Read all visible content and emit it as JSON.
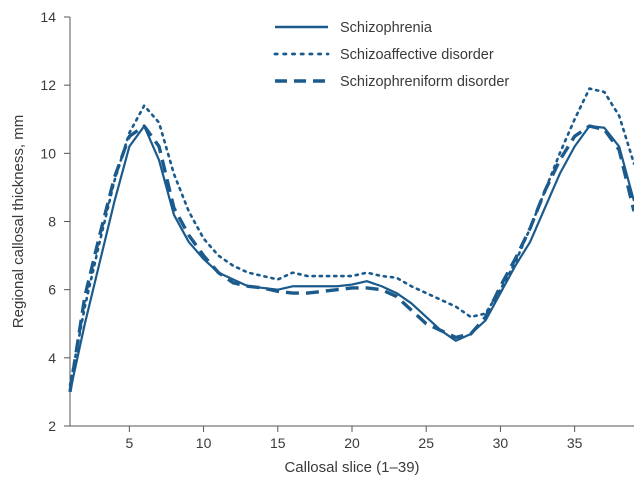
{
  "chart_data": {
    "type": "line",
    "title": "",
    "xlabel": "Callosal slice (1–39)",
    "ylabel": "Regional callosal thickness, mm",
    "xlim": [
      1,
      39
    ],
    "ylim": [
      2,
      14
    ],
    "xticks": [
      5,
      10,
      15,
      20,
      25,
      30,
      35
    ],
    "yticks": [
      2,
      4,
      6,
      8,
      10,
      12,
      14
    ],
    "grid": false,
    "legend_position": "top-center",
    "color": "#1a5a8c",
    "x": [
      1,
      2,
      3,
      4,
      5,
      6,
      7,
      8,
      9,
      10,
      11,
      12,
      13,
      14,
      15,
      16,
      17,
      18,
      19,
      20,
      21,
      22,
      23,
      24,
      25,
      26,
      27,
      28,
      29,
      30,
      31,
      32,
      33,
      34,
      35,
      36,
      37,
      38,
      39
    ],
    "series": [
      {
        "name": "Schizophrenia",
        "style": "solid",
        "values": [
          3.0,
          5.0,
          6.8,
          8.6,
          10.2,
          10.8,
          9.8,
          8.2,
          7.4,
          6.9,
          6.5,
          6.3,
          6.1,
          6.05,
          6.0,
          6.1,
          6.1,
          6.1,
          6.1,
          6.15,
          6.25,
          6.1,
          5.9,
          5.6,
          5.2,
          4.8,
          4.5,
          4.7,
          5.1,
          5.9,
          6.7,
          7.4,
          8.4,
          9.4,
          10.2,
          10.8,
          10.75,
          10.2,
          8.6
        ]
      },
      {
        "name": "Schizoaffective disorder",
        "style": "dotted",
        "values": [
          3.2,
          5.5,
          7.4,
          9.2,
          10.6,
          11.4,
          10.9,
          9.4,
          8.3,
          7.5,
          7.0,
          6.7,
          6.5,
          6.4,
          6.3,
          6.5,
          6.4,
          6.4,
          6.4,
          6.4,
          6.5,
          6.4,
          6.35,
          6.1,
          5.9,
          5.7,
          5.5,
          5.2,
          5.3,
          6.0,
          6.8,
          7.8,
          8.9,
          10.0,
          11.0,
          11.9,
          11.8,
          11.1,
          9.7
        ]
      },
      {
        "name": "Schizophreniform disorder",
        "style": "dashed",
        "values": [
          3.0,
          5.8,
          7.6,
          9.3,
          10.5,
          10.8,
          10.2,
          8.4,
          7.6,
          7.0,
          6.5,
          6.2,
          6.1,
          6.05,
          5.95,
          5.9,
          5.9,
          5.95,
          6.0,
          6.05,
          6.05,
          6.0,
          5.8,
          5.4,
          5.0,
          4.8,
          4.6,
          4.7,
          5.2,
          6.1,
          6.9,
          7.8,
          8.9,
          9.8,
          10.5,
          10.8,
          10.7,
          10.1,
          8.3
        ]
      }
    ]
  }
}
